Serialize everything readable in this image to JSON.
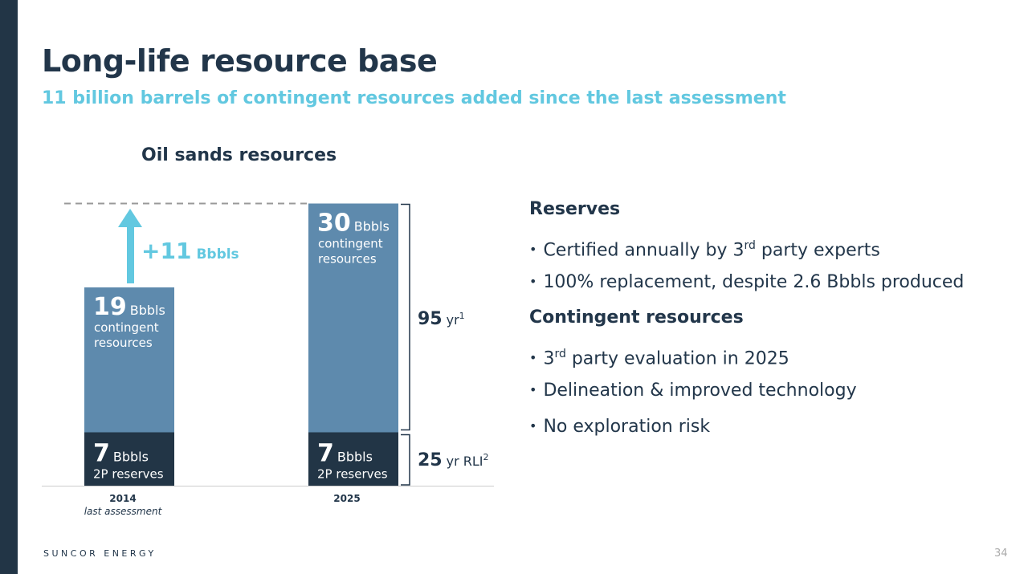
{
  "title": "Long-life resource base",
  "subtitle": "11 billion barrels of contingent resources added since the last assessment",
  "chart_data": {
    "type": "bar",
    "title": "Oil sands resources",
    "categories": [
      "2014",
      "2025"
    ],
    "category_sublabels": [
      "last assessment",
      ""
    ],
    "series": [
      {
        "name": "2P reserves",
        "values": [
          7,
          7
        ],
        "color": "#223546"
      },
      {
        "name": "contingent resources",
        "values": [
          19,
          30
        ],
        "color": "#5e8aad"
      }
    ],
    "unit": "Bbbls",
    "annotations": {
      "increase": "+11",
      "increase_unit": "Bbbls",
      "bracket_contingent": {
        "value": "95",
        "unit": "yr",
        "sup": "1"
      },
      "bracket_reserves": {
        "value": "25",
        "unit": "yr RLI",
        "sup": "2"
      }
    }
  },
  "right": {
    "reserves_heading": "Reserves",
    "reserves_bullets": [
      {
        "pre": "Certified annually by 3",
        "sup": "rd",
        "post": " party experts"
      },
      {
        "pre": "100% replacement, despite 2.6 Bbbls produced",
        "sup": "",
        "post": ""
      }
    ],
    "contingent_heading": "Contingent resources",
    "contingent_bullets": [
      {
        "pre": "3",
        "sup": "rd",
        "post": " party evaluation in 2025"
      },
      {
        "pre": "Delineation & improved technology",
        "sup": "",
        "post": ""
      },
      {
        "pre": "No exploration risk",
        "sup": "",
        "post": ""
      }
    ]
  },
  "footer": "SUNCOR ENERGY",
  "page_number": "34"
}
